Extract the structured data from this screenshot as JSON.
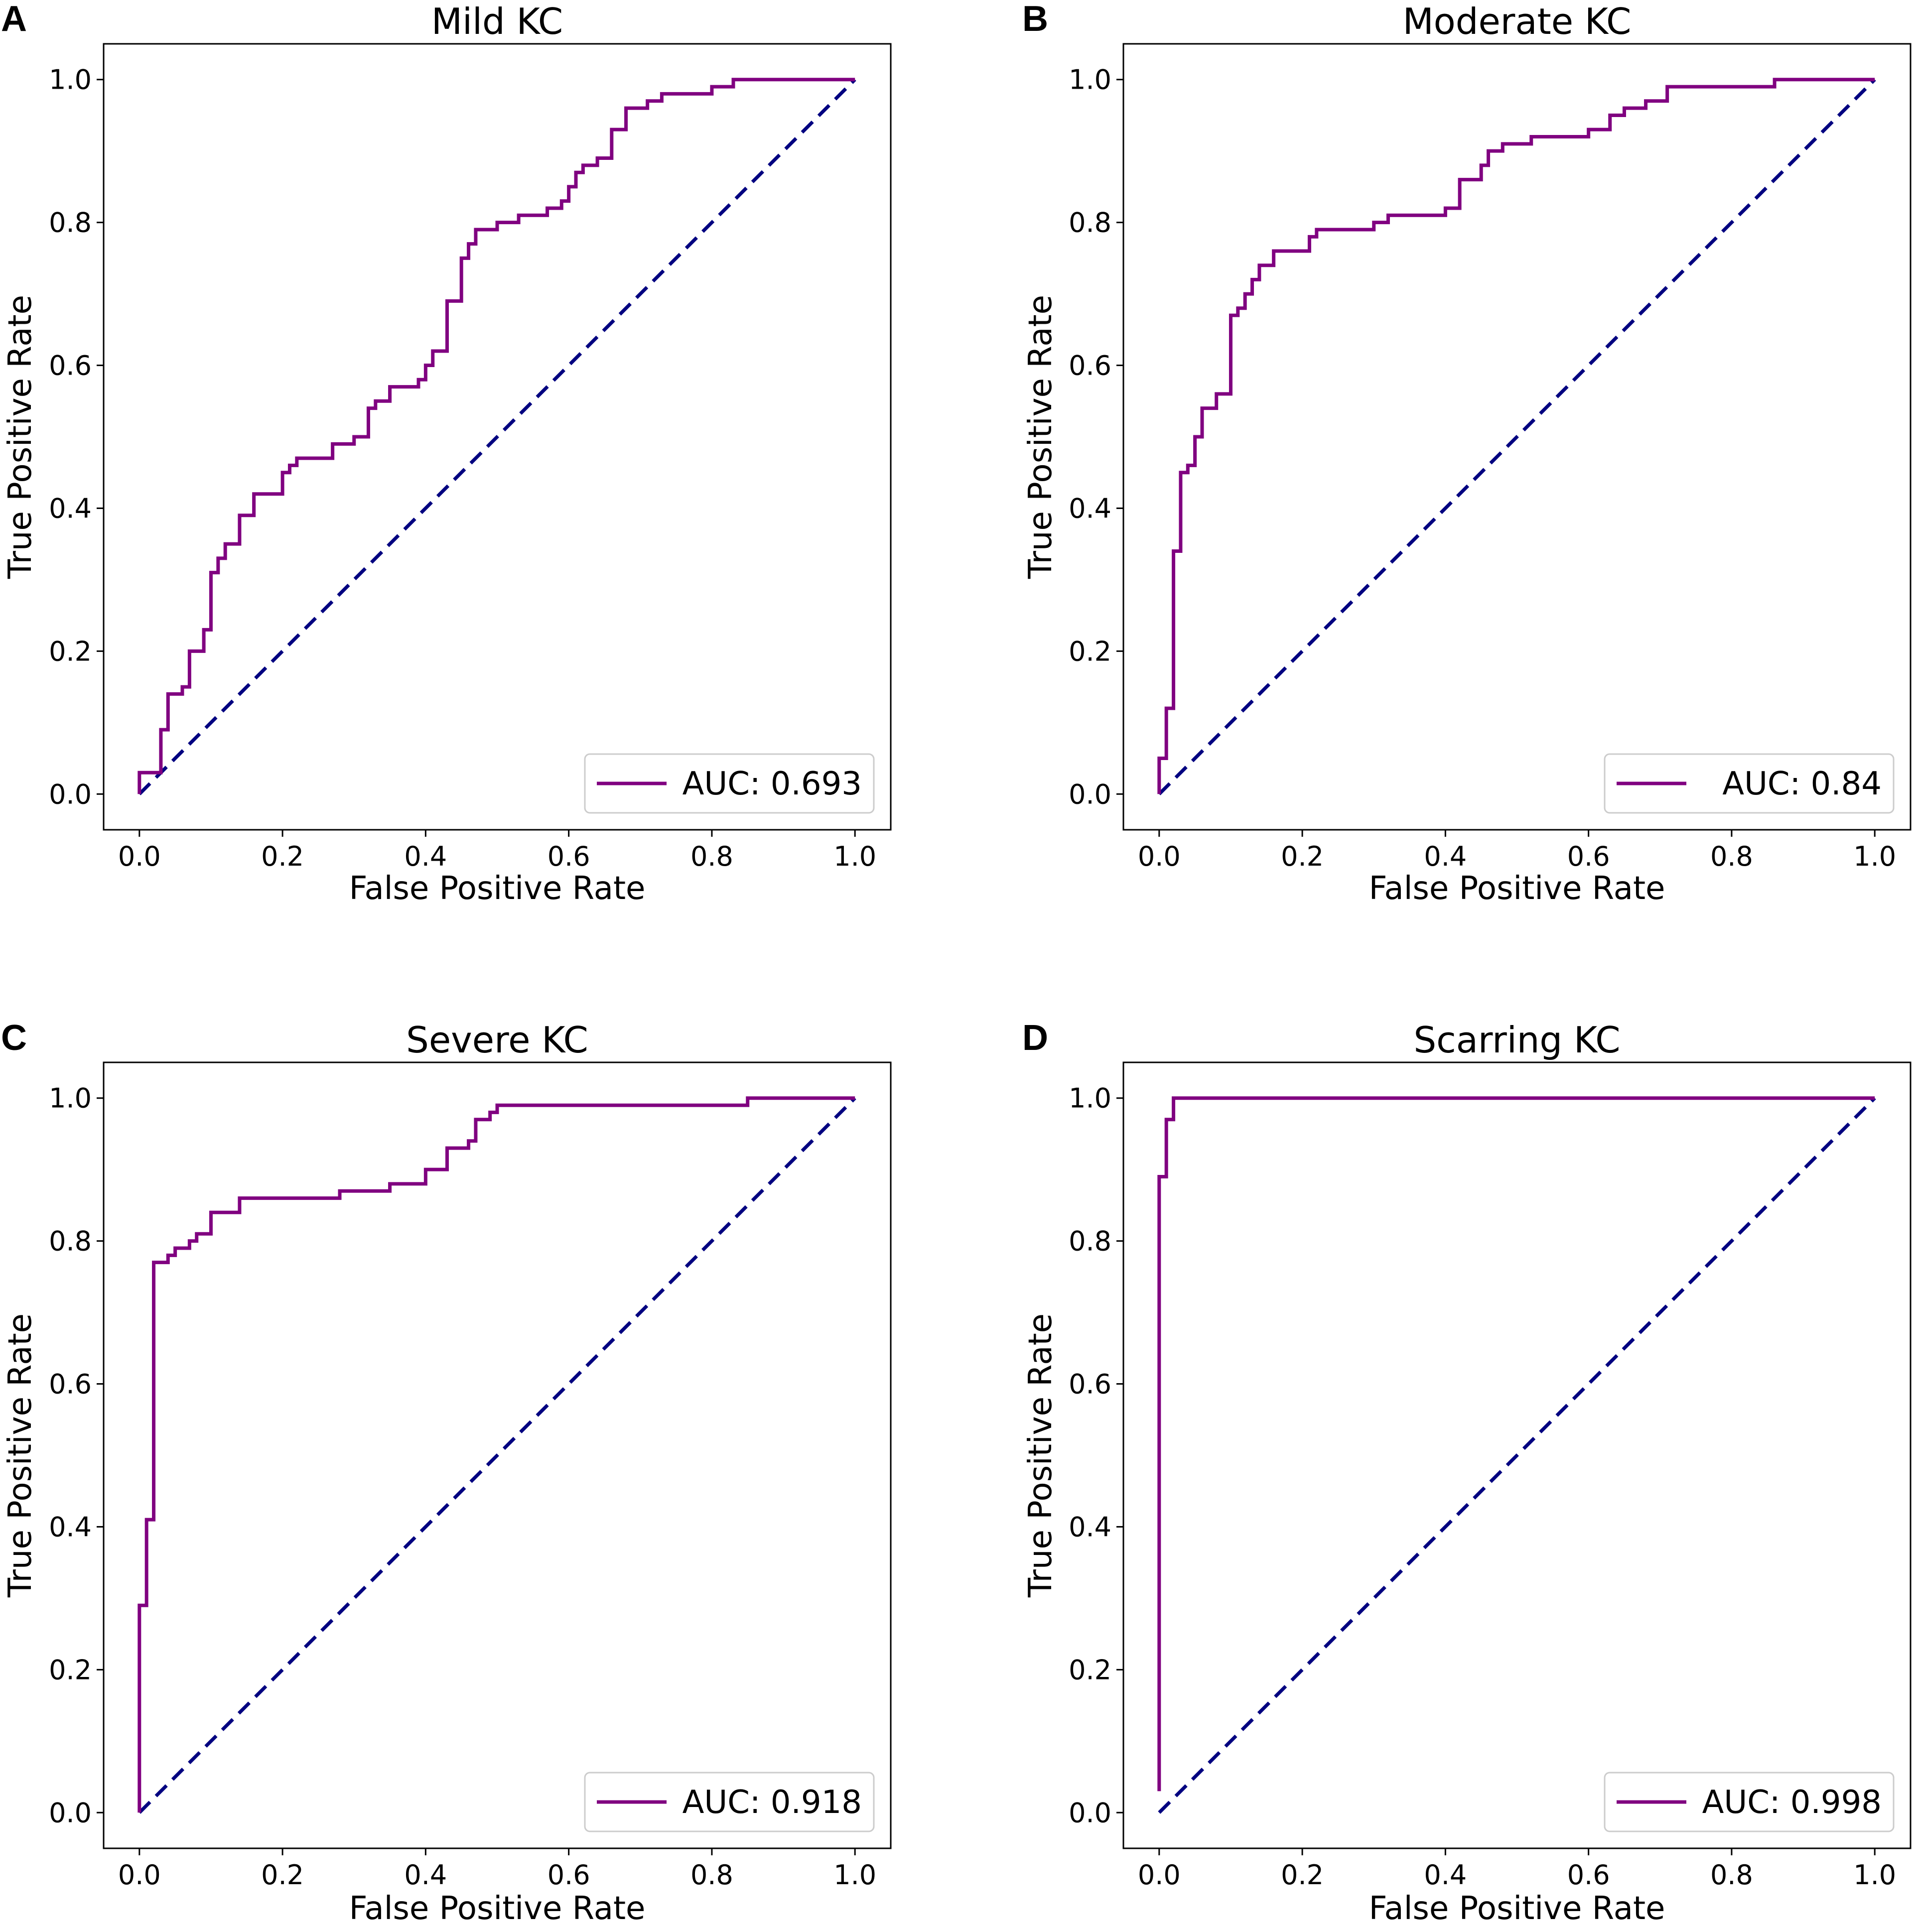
{
  "colors": {
    "roc": "#800080",
    "diagonal": "#000080"
  },
  "chart_data": [
    {
      "type": "line",
      "panel": "A",
      "title": "Mild KC",
      "xlabel": "False Positive Rate",
      "ylabel": "True Positive Rate",
      "xlim": [
        -0.05,
        1.05
      ],
      "ylim": [
        -0.05,
        1.05
      ],
      "xticks": [
        "0.0",
        "0.2",
        "0.4",
        "0.6",
        "0.8",
        "1.0"
      ],
      "yticks": [
        "0.0",
        "0.2",
        "0.4",
        "0.6",
        "0.8",
        "1.0"
      ],
      "legend": "AUC: 0.693",
      "legend_loc": "lower right",
      "diagonal": [
        [
          0,
          0
        ],
        [
          1,
          1
        ]
      ],
      "roc": [
        [
          0,
          0
        ],
        [
          0,
          0.03
        ],
        [
          0.03,
          0.03
        ],
        [
          0.03,
          0.09
        ],
        [
          0.04,
          0.09
        ],
        [
          0.04,
          0.14
        ],
        [
          0.06,
          0.14
        ],
        [
          0.06,
          0.15
        ],
        [
          0.07,
          0.15
        ],
        [
          0.07,
          0.2
        ],
        [
          0.09,
          0.2
        ],
        [
          0.09,
          0.23
        ],
        [
          0.1,
          0.23
        ],
        [
          0.1,
          0.31
        ],
        [
          0.11,
          0.31
        ],
        [
          0.11,
          0.33
        ],
        [
          0.12,
          0.33
        ],
        [
          0.12,
          0.35
        ],
        [
          0.14,
          0.35
        ],
        [
          0.14,
          0.39
        ],
        [
          0.16,
          0.39
        ],
        [
          0.16,
          0.42
        ],
        [
          0.2,
          0.42
        ],
        [
          0.2,
          0.45
        ],
        [
          0.21,
          0.45
        ],
        [
          0.21,
          0.46
        ],
        [
          0.22,
          0.46
        ],
        [
          0.22,
          0.47
        ],
        [
          0.27,
          0.47
        ],
        [
          0.27,
          0.49
        ],
        [
          0.3,
          0.49
        ],
        [
          0.3,
          0.5
        ],
        [
          0.32,
          0.5
        ],
        [
          0.32,
          0.54
        ],
        [
          0.33,
          0.54
        ],
        [
          0.33,
          0.55
        ],
        [
          0.35,
          0.55
        ],
        [
          0.35,
          0.57
        ],
        [
          0.39,
          0.57
        ],
        [
          0.39,
          0.58
        ],
        [
          0.4,
          0.58
        ],
        [
          0.4,
          0.6
        ],
        [
          0.41,
          0.6
        ],
        [
          0.41,
          0.62
        ],
        [
          0.43,
          0.62
        ],
        [
          0.43,
          0.69
        ],
        [
          0.45,
          0.69
        ],
        [
          0.45,
          0.75
        ],
        [
          0.46,
          0.75
        ],
        [
          0.46,
          0.77
        ],
        [
          0.47,
          0.77
        ],
        [
          0.47,
          0.79
        ],
        [
          0.5,
          0.79
        ],
        [
          0.5,
          0.8
        ],
        [
          0.53,
          0.8
        ],
        [
          0.53,
          0.81
        ],
        [
          0.57,
          0.81
        ],
        [
          0.57,
          0.82
        ],
        [
          0.59,
          0.82
        ],
        [
          0.59,
          0.83
        ],
        [
          0.6,
          0.83
        ],
        [
          0.6,
          0.85
        ],
        [
          0.61,
          0.85
        ],
        [
          0.61,
          0.87
        ],
        [
          0.62,
          0.87
        ],
        [
          0.62,
          0.88
        ],
        [
          0.64,
          0.88
        ],
        [
          0.64,
          0.89
        ],
        [
          0.66,
          0.89
        ],
        [
          0.66,
          0.93
        ],
        [
          0.68,
          0.93
        ],
        [
          0.68,
          0.96
        ],
        [
          0.71,
          0.96
        ],
        [
          0.71,
          0.97
        ],
        [
          0.73,
          0.97
        ],
        [
          0.73,
          0.98
        ],
        [
          0.8,
          0.98
        ],
        [
          0.8,
          0.99
        ],
        [
          0.83,
          0.99
        ],
        [
          0.83,
          1
        ],
        [
          1,
          1
        ]
      ]
    },
    {
      "type": "line",
      "panel": "B",
      "title": "Moderate KC",
      "xlabel": "False Positive Rate",
      "ylabel": "True Positive Rate",
      "xlim": [
        -0.05,
        1.05
      ],
      "ylim": [
        -0.05,
        1.05
      ],
      "xticks": [
        "0.0",
        "0.2",
        "0.4",
        "0.6",
        "0.8",
        "1.0"
      ],
      "yticks": [
        "0.0",
        "0.2",
        "0.4",
        "0.6",
        "0.8",
        "1.0"
      ],
      "legend": "AUC: 0.84",
      "legend_loc": "lower right",
      "diagonal": [
        [
          0,
          0
        ],
        [
          1,
          1
        ]
      ],
      "roc": [
        [
          0,
          0
        ],
        [
          0,
          0.05
        ],
        [
          0.01,
          0.05
        ],
        [
          0.01,
          0.12
        ],
        [
          0.02,
          0.12
        ],
        [
          0.02,
          0.34
        ],
        [
          0.03,
          0.34
        ],
        [
          0.03,
          0.45
        ],
        [
          0.04,
          0.45
        ],
        [
          0.04,
          0.46
        ],
        [
          0.05,
          0.46
        ],
        [
          0.05,
          0.5
        ],
        [
          0.06,
          0.5
        ],
        [
          0.06,
          0.54
        ],
        [
          0.08,
          0.54
        ],
        [
          0.08,
          0.56
        ],
        [
          0.1,
          0.56
        ],
        [
          0.1,
          0.67
        ],
        [
          0.11,
          0.67
        ],
        [
          0.11,
          0.68
        ],
        [
          0.12,
          0.68
        ],
        [
          0.12,
          0.7
        ],
        [
          0.13,
          0.7
        ],
        [
          0.13,
          0.72
        ],
        [
          0.14,
          0.72
        ],
        [
          0.14,
          0.74
        ],
        [
          0.16,
          0.74
        ],
        [
          0.16,
          0.76
        ],
        [
          0.21,
          0.76
        ],
        [
          0.21,
          0.78
        ],
        [
          0.22,
          0.78
        ],
        [
          0.22,
          0.79
        ],
        [
          0.3,
          0.79
        ],
        [
          0.3,
          0.8
        ],
        [
          0.32,
          0.8
        ],
        [
          0.32,
          0.81
        ],
        [
          0.4,
          0.81
        ],
        [
          0.4,
          0.82
        ],
        [
          0.42,
          0.82
        ],
        [
          0.42,
          0.86
        ],
        [
          0.45,
          0.86
        ],
        [
          0.45,
          0.88
        ],
        [
          0.46,
          0.88
        ],
        [
          0.46,
          0.9
        ],
        [
          0.48,
          0.9
        ],
        [
          0.48,
          0.91
        ],
        [
          0.52,
          0.91
        ],
        [
          0.52,
          0.92
        ],
        [
          0.6,
          0.92
        ],
        [
          0.6,
          0.93
        ],
        [
          0.63,
          0.93
        ],
        [
          0.63,
          0.95
        ],
        [
          0.65,
          0.95
        ],
        [
          0.65,
          0.96
        ],
        [
          0.68,
          0.96
        ],
        [
          0.68,
          0.97
        ],
        [
          0.71,
          0.97
        ],
        [
          0.71,
          0.99
        ],
        [
          0.86,
          0.99
        ],
        [
          0.86,
          1
        ],
        [
          1,
          1
        ]
      ]
    },
    {
      "type": "line",
      "panel": "C",
      "title": "Severe KC",
      "xlabel": "False Positive Rate",
      "ylabel": "True Positive Rate",
      "xlim": [
        -0.05,
        1.05
      ],
      "ylim": [
        -0.05,
        1.05
      ],
      "xticks": [
        "0.0",
        "0.2",
        "0.4",
        "0.6",
        "0.8",
        "1.0"
      ],
      "yticks": [
        "0.0",
        "0.2",
        "0.4",
        "0.6",
        "0.8",
        "1.0"
      ],
      "legend": "AUC: 0.918",
      "legend_loc": "lower right",
      "diagonal": [
        [
          0,
          0
        ],
        [
          1,
          1
        ]
      ],
      "roc": [
        [
          0,
          0
        ],
        [
          0,
          0.29
        ],
        [
          0.01,
          0.29
        ],
        [
          0.01,
          0.41
        ],
        [
          0.02,
          0.41
        ],
        [
          0.02,
          0.77
        ],
        [
          0.04,
          0.77
        ],
        [
          0.04,
          0.78
        ],
        [
          0.05,
          0.78
        ],
        [
          0.05,
          0.79
        ],
        [
          0.07,
          0.79
        ],
        [
          0.07,
          0.8
        ],
        [
          0.08,
          0.8
        ],
        [
          0.08,
          0.81
        ],
        [
          0.1,
          0.81
        ],
        [
          0.1,
          0.84
        ],
        [
          0.14,
          0.84
        ],
        [
          0.14,
          0.86
        ],
        [
          0.28,
          0.86
        ],
        [
          0.28,
          0.87
        ],
        [
          0.35,
          0.87
        ],
        [
          0.35,
          0.88
        ],
        [
          0.4,
          0.88
        ],
        [
          0.4,
          0.9
        ],
        [
          0.43,
          0.9
        ],
        [
          0.43,
          0.93
        ],
        [
          0.46,
          0.93
        ],
        [
          0.46,
          0.94
        ],
        [
          0.47,
          0.94
        ],
        [
          0.47,
          0.97
        ],
        [
          0.49,
          0.97
        ],
        [
          0.49,
          0.98
        ],
        [
          0.5,
          0.98
        ],
        [
          0.5,
          0.99
        ],
        [
          0.85,
          0.99
        ],
        [
          0.85,
          1
        ],
        [
          1,
          1
        ]
      ]
    },
    {
      "type": "line",
      "panel": "D",
      "title": "Scarring KC",
      "xlabel": "False Positive Rate",
      "ylabel": "True Positive Rate",
      "xlim": [
        -0.05,
        1.05
      ],
      "ylim": [
        -0.05,
        1.05
      ],
      "xticks": [
        "0.0",
        "0.2",
        "0.4",
        "0.6",
        "0.8",
        "1.0"
      ],
      "yticks": [
        "0.0",
        "0.2",
        "0.4",
        "0.6",
        "0.8",
        "1.0"
      ],
      "legend": "AUC: 0.998",
      "legend_loc": "lower right",
      "diagonal": [
        [
          0,
          0
        ],
        [
          1,
          1
        ]
      ],
      "roc": [
        [
          0,
          0.03
        ],
        [
          0,
          0.89
        ],
        [
          0.01,
          0.89
        ],
        [
          0.01,
          0.97
        ],
        [
          0.02,
          0.97
        ],
        [
          0.02,
          1
        ],
        [
          1,
          1
        ]
      ]
    }
  ]
}
